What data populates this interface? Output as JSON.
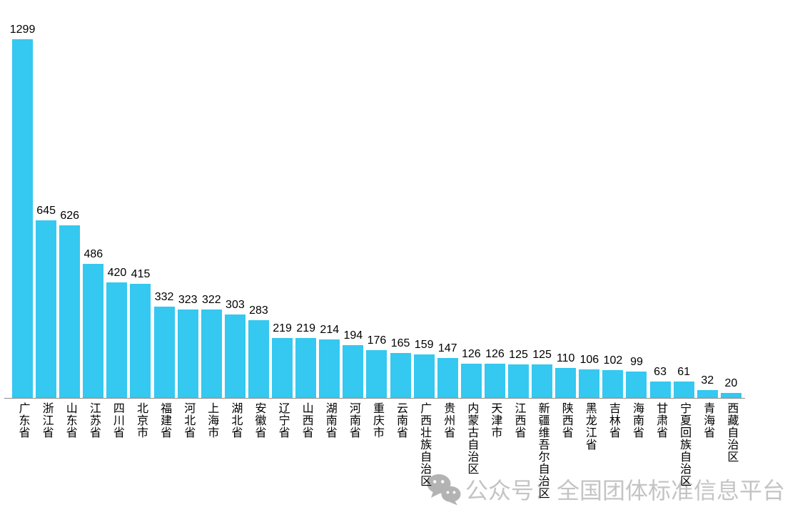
{
  "chart_data": {
    "type": "bar",
    "categories": [
      "广东省",
      "浙江省",
      "山东省",
      "江苏省",
      "四川省",
      "北京市",
      "福建省",
      "河北省",
      "上海市",
      "湖北省",
      "安徽省",
      "辽宁省",
      "山西省",
      "湖南省",
      "河南省",
      "重庆市",
      "云南省",
      "广西壮族自治区",
      "贵州省",
      "内蒙古自治区",
      "天津市",
      "江西省",
      "新疆维吾尔自治区",
      "陕西省",
      "黑龙江省",
      "吉林省",
      "海南省",
      "甘肃省",
      "宁夏回族自治区",
      "青海省",
      "西藏自治区"
    ],
    "values": [
      1299,
      645,
      626,
      486,
      420,
      415,
      332,
      323,
      322,
      303,
      283,
      219,
      219,
      214,
      194,
      176,
      165,
      159,
      147,
      126,
      126,
      125,
      125,
      110,
      106,
      102,
      99,
      63,
      61,
      32,
      20
    ],
    "title": "",
    "xlabel": "",
    "ylabel": "",
    "ylim": [
      0,
      1350
    ],
    "grid": false,
    "legend": false,
    "bar_color": "#35C8F0",
    "axis_line_color": "#8a8a8a",
    "value_label_color": "#000000",
    "category_label_color": "#000000",
    "data_labels_shown": true
  },
  "watermark": {
    "icon": "wechat-icon",
    "text": "公众号：全国团体标准信息平台",
    "text_color": "#c4c4c4",
    "icon_color": "#b3b3b3"
  }
}
